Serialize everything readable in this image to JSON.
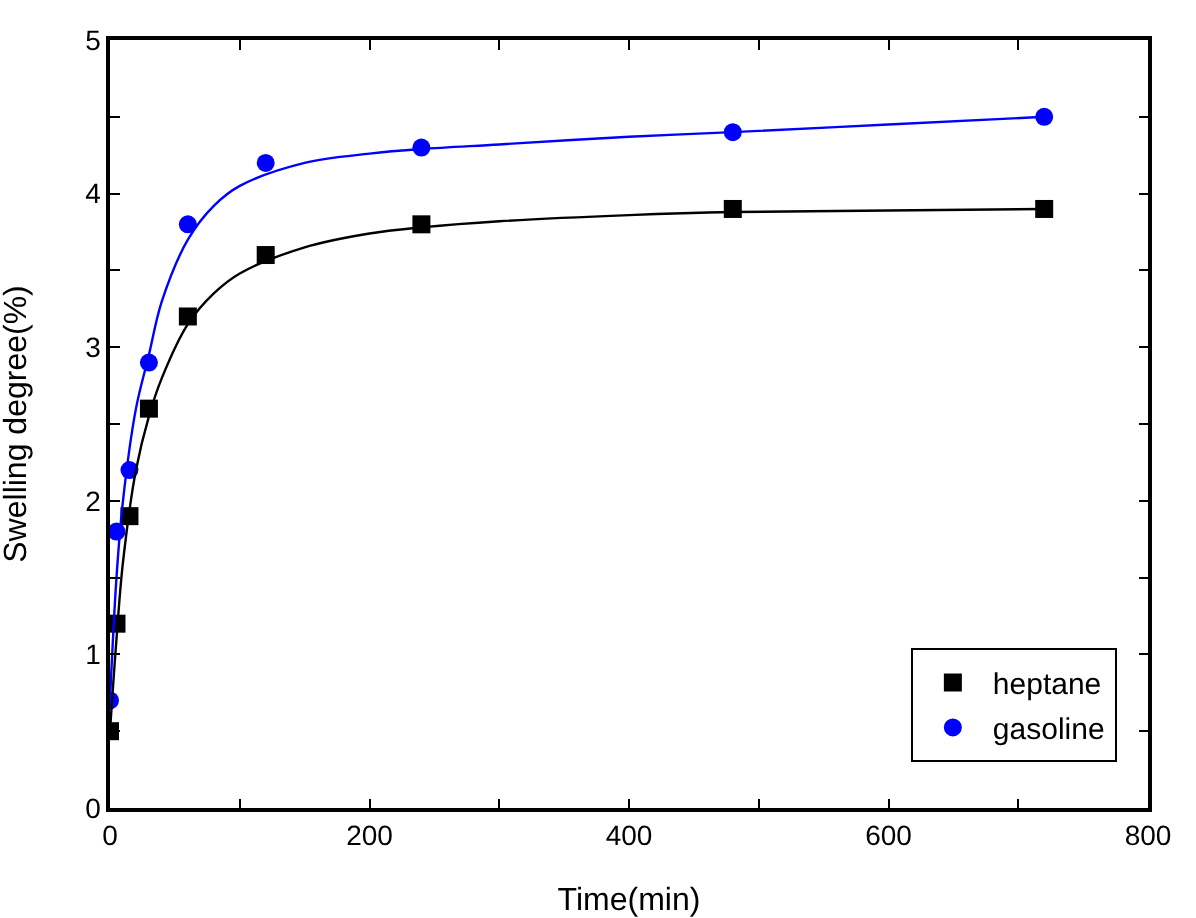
{
  "chart_data": {
    "type": "scatter",
    "xlabel": "Time(min)",
    "ylabel": "Swelling degree(%)",
    "x": [
      0,
      5,
      15,
      30,
      60,
      120,
      240,
      480,
      720
    ],
    "series": [
      {
        "name": "heptane",
        "color": "#000000",
        "marker": "square",
        "values": [
          0.5,
          1.2,
          1.9,
          2.6,
          3.2,
          3.6,
          3.8,
          3.9,
          3.9
        ]
      },
      {
        "name": "gasoline",
        "color": "#0000ff",
        "marker": "circle",
        "values": [
          0.7,
          1.8,
          2.2,
          2.9,
          3.8,
          4.2,
          4.3,
          4.4,
          4.5
        ]
      },
      {
        "type": "line",
        "color": "#000000",
        "x": [
          0,
          5,
          10,
          20,
          30,
          40,
          60,
          80,
          100,
          150,
          200,
          240,
          300,
          400,
          480,
          600,
          720
        ],
        "values": [
          0.5,
          1.1,
          1.6,
          2.2,
          2.55,
          2.8,
          3.15,
          3.35,
          3.48,
          3.65,
          3.74,
          3.78,
          3.82,
          3.86,
          3.88,
          3.89,
          3.9
        ]
      },
      {
        "type": "line",
        "color": "#0000ff",
        "x": [
          0,
          5,
          10,
          20,
          30,
          40,
          60,
          80,
          100,
          150,
          200,
          240,
          300,
          400,
          480,
          600,
          720
        ],
        "values": [
          0.7,
          1.5,
          2.0,
          2.6,
          2.95,
          3.3,
          3.7,
          3.92,
          4.05,
          4.2,
          4.26,
          4.29,
          4.32,
          4.37,
          4.4,
          4.45,
          4.5
        ]
      }
    ],
    "xlim": [
      0,
      800
    ],
    "xticks": [
      0,
      {
        "value": 100,
        "label": null
      },
      200,
      {
        "value": 300,
        "label": null
      },
      400,
      {
        "value": 500,
        "label": null
      },
      600,
      {
        "value": 700,
        "label": null
      },
      800
    ],
    "ylim": [
      0,
      5
    ],
    "yticks": [
      0,
      {
        "value": 0.5,
        "label": null
      },
      1,
      {
        "value": 1.5,
        "label": null
      },
      2,
      {
        "value": 2.5,
        "label": null
      },
      3,
      {
        "value": 3.5,
        "label": null
      },
      4,
      {
        "value": 4.5,
        "label": null
      },
      5
    ],
    "grid": false,
    "legend": "bottom right",
    "line_style": "solid"
  }
}
